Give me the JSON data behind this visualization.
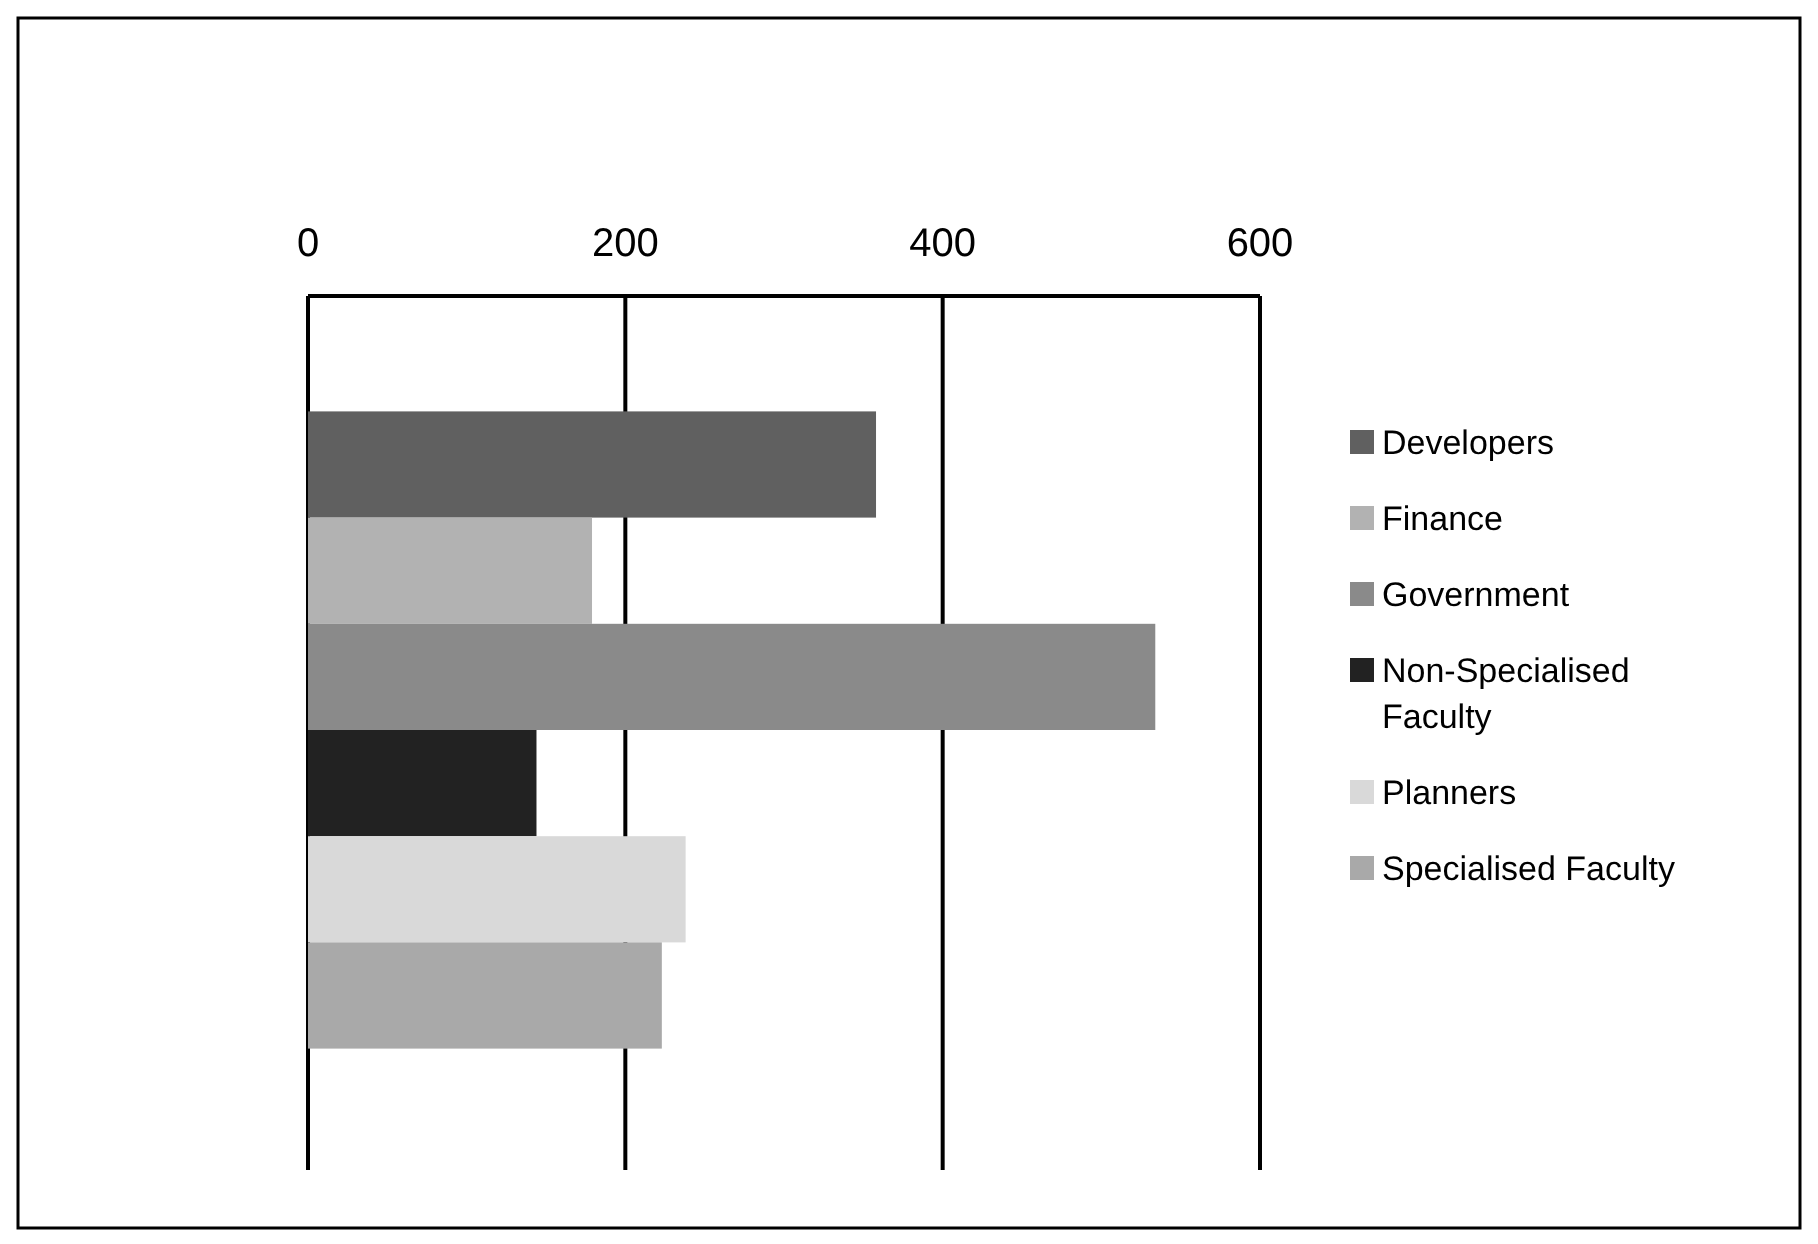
{
  "chart_data": {
    "type": "bar",
    "orientation": "horizontal",
    "categories": [
      null
    ],
    "series": [
      {
        "name": "Developers",
        "color": "#606060",
        "values": [
          358
        ]
      },
      {
        "name": "Finance",
        "color": "#b2b2b2",
        "values": [
          179
        ]
      },
      {
        "name": "Government",
        "color": "#8a8a8a",
        "values": [
          534
        ]
      },
      {
        "name": "Non-Specialised Faculty",
        "color": "#222222",
        "values": [
          144
        ]
      },
      {
        "name": "Planners",
        "color": "#d9d9d9",
        "values": [
          238
        ]
      },
      {
        "name": "Specialised Faculty",
        "color": "#a9a9a9",
        "values": [
          223
        ]
      }
    ],
    "xlim": [
      0,
      600
    ],
    "xticks": [
      0,
      200,
      400,
      600
    ],
    "grid": "x",
    "legend": "right"
  }
}
